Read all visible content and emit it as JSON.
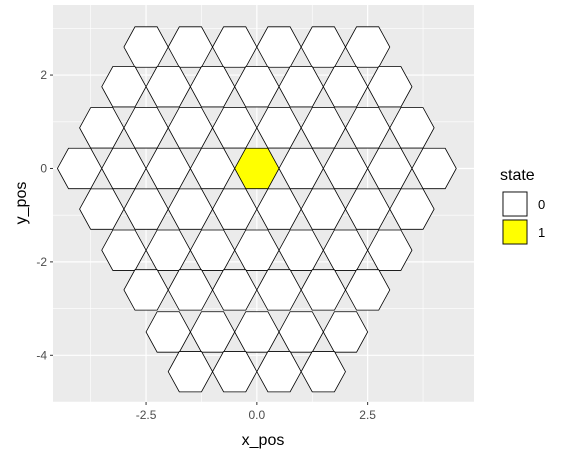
{
  "chart_data": {
    "type": "hexagon-map",
    "xlabel": "x_pos",
    "ylabel": "y_pos",
    "xlim": [
      -4.6,
      4.9
    ],
    "ylim": [
      -5.0,
      3.5
    ],
    "x_ticks": [
      -2.5,
      0.0,
      2.5
    ],
    "x_tick_labels": [
      "-2.5",
      "0.0",
      "2.5"
    ],
    "y_ticks": [
      -4,
      -2,
      0,
      2
    ],
    "y_tick_labels": [
      "-4",
      "-2",
      "0",
      "2"
    ],
    "hex_circumradius": 0.5,
    "hex_orientation": "flat-top",
    "grid": true,
    "legend": {
      "title": "state",
      "position": "right",
      "entries": [
        {
          "label": "0",
          "fill": "#ffffff"
        },
        {
          "label": "1",
          "fill": "#ffff00"
        }
      ]
    },
    "cells": [
      {
        "x": -2.5,
        "y": 2.6,
        "state": 0
      },
      {
        "x": -1.5,
        "y": 2.6,
        "state": 0
      },
      {
        "x": -0.5,
        "y": 2.6,
        "state": 0
      },
      {
        "x": 0.5,
        "y": 2.6,
        "state": 0
      },
      {
        "x": 1.5,
        "y": 2.6,
        "state": 0
      },
      {
        "x": 2.5,
        "y": 2.6,
        "state": 0
      },
      {
        "x": -3.0,
        "y": 1.75,
        "state": 0
      },
      {
        "x": -2.0,
        "y": 1.75,
        "state": 0
      },
      {
        "x": -1.0,
        "y": 1.75,
        "state": 0
      },
      {
        "x": 0.0,
        "y": 1.75,
        "state": 0
      },
      {
        "x": 1.0,
        "y": 1.75,
        "state": 0
      },
      {
        "x": 2.0,
        "y": 1.75,
        "state": 0
      },
      {
        "x": 3.0,
        "y": 1.75,
        "state": 0
      },
      {
        "x": -3.5,
        "y": 0.87,
        "state": 0
      },
      {
        "x": -2.5,
        "y": 0.87,
        "state": 0
      },
      {
        "x": -1.5,
        "y": 0.87,
        "state": 0
      },
      {
        "x": -0.5,
        "y": 0.87,
        "state": 0
      },
      {
        "x": 0.5,
        "y": 0.87,
        "state": 0
      },
      {
        "x": 1.5,
        "y": 0.87,
        "state": 0
      },
      {
        "x": 2.5,
        "y": 0.87,
        "state": 0
      },
      {
        "x": 3.5,
        "y": 0.87,
        "state": 0
      },
      {
        "x": -4.0,
        "y": 0.0,
        "state": 0
      },
      {
        "x": -3.0,
        "y": 0.0,
        "state": 0
      },
      {
        "x": -2.0,
        "y": 0.0,
        "state": 0
      },
      {
        "x": -1.0,
        "y": 0.0,
        "state": 0
      },
      {
        "x": 0.0,
        "y": 0.0,
        "state": 1
      },
      {
        "x": 1.0,
        "y": 0.0,
        "state": 0
      },
      {
        "x": 2.0,
        "y": 0.0,
        "state": 0
      },
      {
        "x": 3.0,
        "y": 0.0,
        "state": 0
      },
      {
        "x": 4.0,
        "y": 0.0,
        "state": 0
      },
      {
        "x": -3.5,
        "y": -0.87,
        "state": 0
      },
      {
        "x": -2.5,
        "y": -0.87,
        "state": 0
      },
      {
        "x": -1.5,
        "y": -0.87,
        "state": 0
      },
      {
        "x": -0.5,
        "y": -0.87,
        "state": 0
      },
      {
        "x": 0.5,
        "y": -0.87,
        "state": 0
      },
      {
        "x": 1.5,
        "y": -0.87,
        "state": 0
      },
      {
        "x": 2.5,
        "y": -0.87,
        "state": 0
      },
      {
        "x": 3.5,
        "y": -0.87,
        "state": 0
      },
      {
        "x": -3.0,
        "y": -1.75,
        "state": 0
      },
      {
        "x": -2.0,
        "y": -1.75,
        "state": 0
      },
      {
        "x": -1.0,
        "y": -1.75,
        "state": 0
      },
      {
        "x": 0.0,
        "y": -1.75,
        "state": 0
      },
      {
        "x": 1.0,
        "y": -1.75,
        "state": 0
      },
      {
        "x": 2.0,
        "y": -1.75,
        "state": 0
      },
      {
        "x": 3.0,
        "y": -1.75,
        "state": 0
      },
      {
        "x": -2.5,
        "y": -2.6,
        "state": 0
      },
      {
        "x": -1.5,
        "y": -2.6,
        "state": 0
      },
      {
        "x": -0.5,
        "y": -2.6,
        "state": 0
      },
      {
        "x": 0.5,
        "y": -2.6,
        "state": 0
      },
      {
        "x": 1.5,
        "y": -2.6,
        "state": 0
      },
      {
        "x": 2.5,
        "y": -2.6,
        "state": 0
      },
      {
        "x": -2.0,
        "y": -3.5,
        "state": 0
      },
      {
        "x": -1.0,
        "y": -3.5,
        "state": 0
      },
      {
        "x": 0.0,
        "y": -3.5,
        "state": 0
      },
      {
        "x": 1.0,
        "y": -3.5,
        "state": 0
      },
      {
        "x": 2.0,
        "y": -3.5,
        "state": 0
      },
      {
        "x": -1.5,
        "y": -4.35,
        "state": 0
      },
      {
        "x": -0.5,
        "y": -4.35,
        "state": 0
      },
      {
        "x": 0.5,
        "y": -4.35,
        "state": 0
      },
      {
        "x": 1.5,
        "y": -4.35,
        "state": 0
      }
    ]
  }
}
